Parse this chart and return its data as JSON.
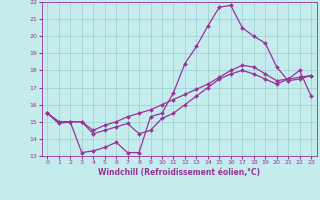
{
  "xlabel": "Windchill (Refroidissement éolien,°C)",
  "xlim": [
    -0.5,
    23.5
  ],
  "ylim": [
    13,
    22
  ],
  "yticks": [
    13,
    14,
    15,
    16,
    17,
    18,
    19,
    20,
    21,
    22
  ],
  "xticks": [
    0,
    1,
    2,
    3,
    4,
    5,
    6,
    7,
    8,
    9,
    10,
    11,
    12,
    13,
    14,
    15,
    16,
    17,
    18,
    19,
    20,
    21,
    22,
    23
  ],
  "bg_color": "#c5eced",
  "grid_color": "#9ecece",
  "line_color": "#993399",
  "line_width": 0.9,
  "marker": "D",
  "marker_size": 2.0,
  "line1_x": [
    0,
    1,
    2,
    3,
    4,
    5,
    6,
    7,
    8,
    9,
    10,
    11,
    12,
    13,
    14,
    15,
    16,
    17,
    18,
    19,
    20,
    21,
    22,
    23
  ],
  "line1_y": [
    15.5,
    14.9,
    15.0,
    13.2,
    13.3,
    13.5,
    13.8,
    13.2,
    13.2,
    15.3,
    15.5,
    16.7,
    18.4,
    19.4,
    20.6,
    21.7,
    21.8,
    20.5,
    20.0,
    19.6,
    18.2,
    17.4,
    17.5,
    17.7
  ],
  "line2_x": [
    0,
    1,
    2,
    3,
    4,
    5,
    6,
    7,
    8,
    9,
    10,
    11,
    12,
    13,
    14,
    15,
    16,
    17,
    18,
    19,
    20,
    21,
    22,
    23
  ],
  "line2_y": [
    15.5,
    15.0,
    15.0,
    15.0,
    14.5,
    14.8,
    15.0,
    15.3,
    15.5,
    15.7,
    16.0,
    16.3,
    16.6,
    16.9,
    17.2,
    17.6,
    18.0,
    18.3,
    18.2,
    17.8,
    17.4,
    17.5,
    17.6,
    17.7
  ],
  "line3_x": [
    0,
    1,
    2,
    3,
    4,
    5,
    6,
    7,
    8,
    9,
    10,
    11,
    12,
    13,
    14,
    15,
    16,
    17,
    18,
    19,
    20,
    21,
    22,
    23
  ],
  "line3_y": [
    15.5,
    15.0,
    15.0,
    15.0,
    14.3,
    14.5,
    14.7,
    14.9,
    14.3,
    14.5,
    15.2,
    15.5,
    16.0,
    16.5,
    17.0,
    17.5,
    17.8,
    18.0,
    17.8,
    17.5,
    17.2,
    17.5,
    18.0,
    16.5
  ]
}
